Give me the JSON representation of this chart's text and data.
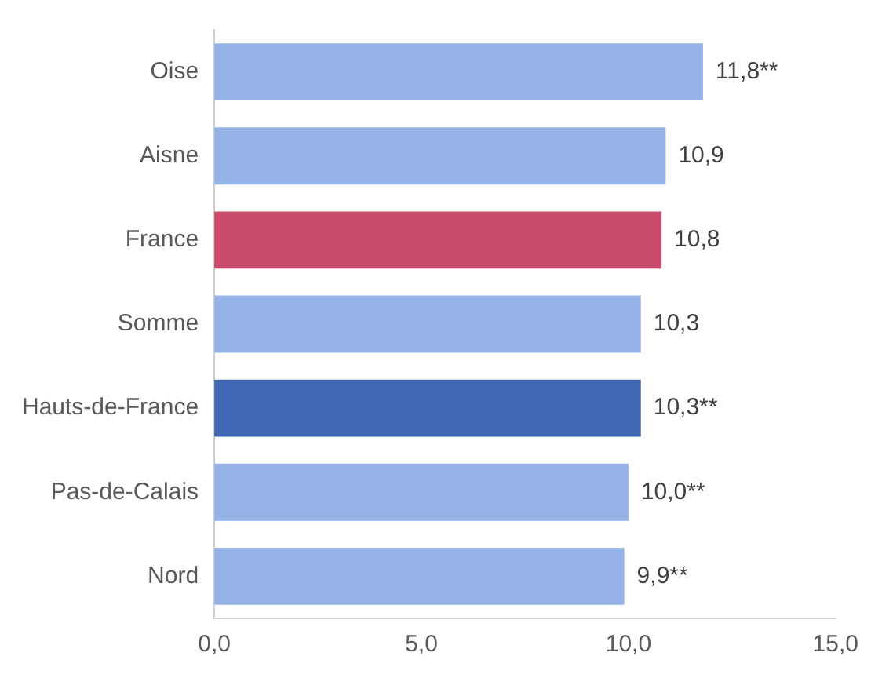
{
  "chart_data": {
    "type": "bar",
    "orientation": "horizontal",
    "categories": [
      "Oise",
      "Aisne",
      "France",
      "Somme",
      "Hauts-de-France",
      "Pas-de-Calais",
      "Nord"
    ],
    "values": [
      11.8,
      10.9,
      10.8,
      10.3,
      10.3,
      10.0,
      9.9
    ],
    "colors": [
      "#95b3e7",
      "#95b3e7",
      "#c94a6b",
      "#95b3e7",
      "#4068b2",
      "#95b3e7",
      "#95b3e7"
    ],
    "value_labels": [
      "11,8**",
      "10,9",
      "10,8",
      "10,3",
      "10,3**",
      "10,0**",
      "9,9**"
    ],
    "xlim": [
      0,
      15
    ],
    "xticks": [
      {
        "value": 0,
        "label": "0,0"
      },
      {
        "value": 5,
        "label": "5,0"
      },
      {
        "value": 10,
        "label": "10,0"
      },
      {
        "value": 15,
        "label": "15,0"
      }
    ],
    "grid": false,
    "legend": false
  }
}
